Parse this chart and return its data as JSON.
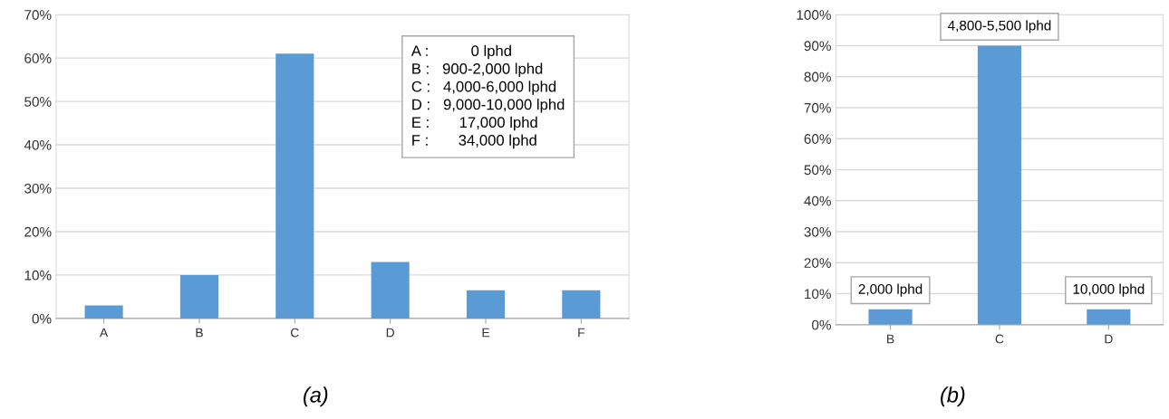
{
  "chart_data": [
    {
      "type": "bar",
      "categories": [
        "A",
        "B",
        "C",
        "D",
        "E",
        "F"
      ],
      "values": [
        3,
        10,
        61,
        13,
        6.5,
        6.5
      ],
      "color": "#5b9bd5",
      "ylim": [
        0,
        70
      ],
      "yticks": [
        {
          "value": 0,
          "label": "0%"
        },
        {
          "value": 10,
          "label": "10%"
        },
        {
          "value": 20,
          "label": "20%"
        },
        {
          "value": 30,
          "label": "30%"
        },
        {
          "value": 40,
          "label": "40%"
        },
        {
          "value": 50,
          "label": "50%"
        },
        {
          "value": 60,
          "label": "60%"
        },
        {
          "value": 70,
          "label": "70%"
        }
      ],
      "grid": "y",
      "annotations": [
        "A :          0 lphd",
        "B :   900-2,000 lphd",
        "C :   4,000-6,000 lphd",
        "D :   9,000-10,000 lphd",
        "E :       17,000 lphd",
        "F :       34,000 lphd",
        "(a)"
      ]
    },
    {
      "type": "bar",
      "categories": [
        "B",
        "C",
        "D"
      ],
      "values": [
        5,
        90,
        5
      ],
      "color": "#5b9bd5",
      "ylim": [
        0,
        100
      ],
      "yticks": [
        {
          "value": 0,
          "label": "0%"
        },
        {
          "value": 10,
          "label": "10%"
        },
        {
          "value": 20,
          "label": "20%"
        },
        {
          "value": 30,
          "label": "30%"
        },
        {
          "value": 40,
          "label": "40%"
        },
        {
          "value": 50,
          "label": "50%"
        },
        {
          "value": 60,
          "label": "60%"
        },
        {
          "value": 70,
          "label": "70%"
        },
        {
          "value": 80,
          "label": "80%"
        },
        {
          "value": 90,
          "label": "90%"
        },
        {
          "value": 100,
          "label": "100%"
        }
      ],
      "grid": "y",
      "annotations": [
        {
          "text": "2,000 lphd",
          "x": "B",
          "y": 5
        },
        {
          "text": "4,800-5,500 lphd",
          "x": "C",
          "y": 90
        },
        {
          "text": "10,000 lphd",
          "x": "D",
          "y": 5
        },
        "(b)"
      ]
    }
  ]
}
